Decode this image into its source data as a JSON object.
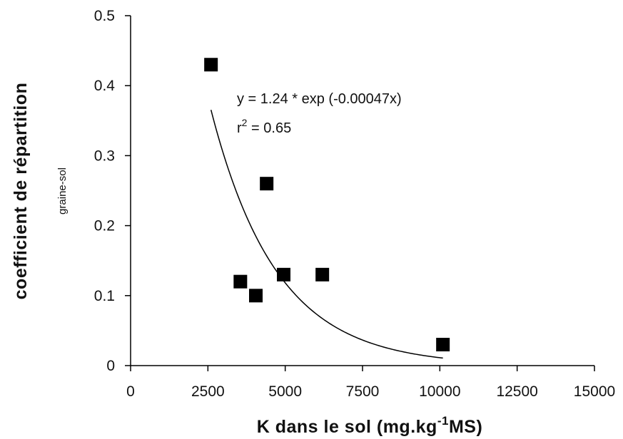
{
  "chart_data": {
    "type": "scatter",
    "xlabel": "K dans le sol (mg.kg",
    "xlabel_sup": "-1",
    "xlabel_end": "MS)",
    "ylabel": "coefficient de répartition",
    "ylabel_sub": "graine-sol",
    "xlim": [
      0,
      15000
    ],
    "ylim": [
      0,
      0.5
    ],
    "x_ticks": [
      0,
      2500,
      5000,
      7500,
      10000,
      12500,
      15000
    ],
    "x_tick_labels": [
      "0",
      "2500",
      "5000",
      "7500",
      "10000",
      "12500",
      "15000"
    ],
    "y_ticks": [
      0,
      0.1,
      0.2,
      0.3,
      0.4,
      0.5
    ],
    "y_tick_labels": [
      "0",
      "0.1",
      "0.2",
      "0.3",
      "0.4",
      "0.5"
    ],
    "grid": false,
    "points": [
      {
        "x": 2600,
        "y": 0.43
      },
      {
        "x": 3550,
        "y": 0.12
      },
      {
        "x": 4050,
        "y": 0.1
      },
      {
        "x": 4400,
        "y": 0.26
      },
      {
        "x": 4950,
        "y": 0.13
      },
      {
        "x": 6200,
        "y": 0.13
      },
      {
        "x": 10100,
        "y": 0.03
      }
    ],
    "fit": {
      "a": 1.24,
      "b": -0.00047,
      "x_range": [
        2600,
        10100
      ]
    },
    "equation_text": "y = 1.24 * exp (-0.00047x)",
    "r2_label": "r",
    "r2_sup": "2",
    "r2_text": " = 0.65",
    "marker_color": "#000000",
    "line_color": "#000000"
  }
}
